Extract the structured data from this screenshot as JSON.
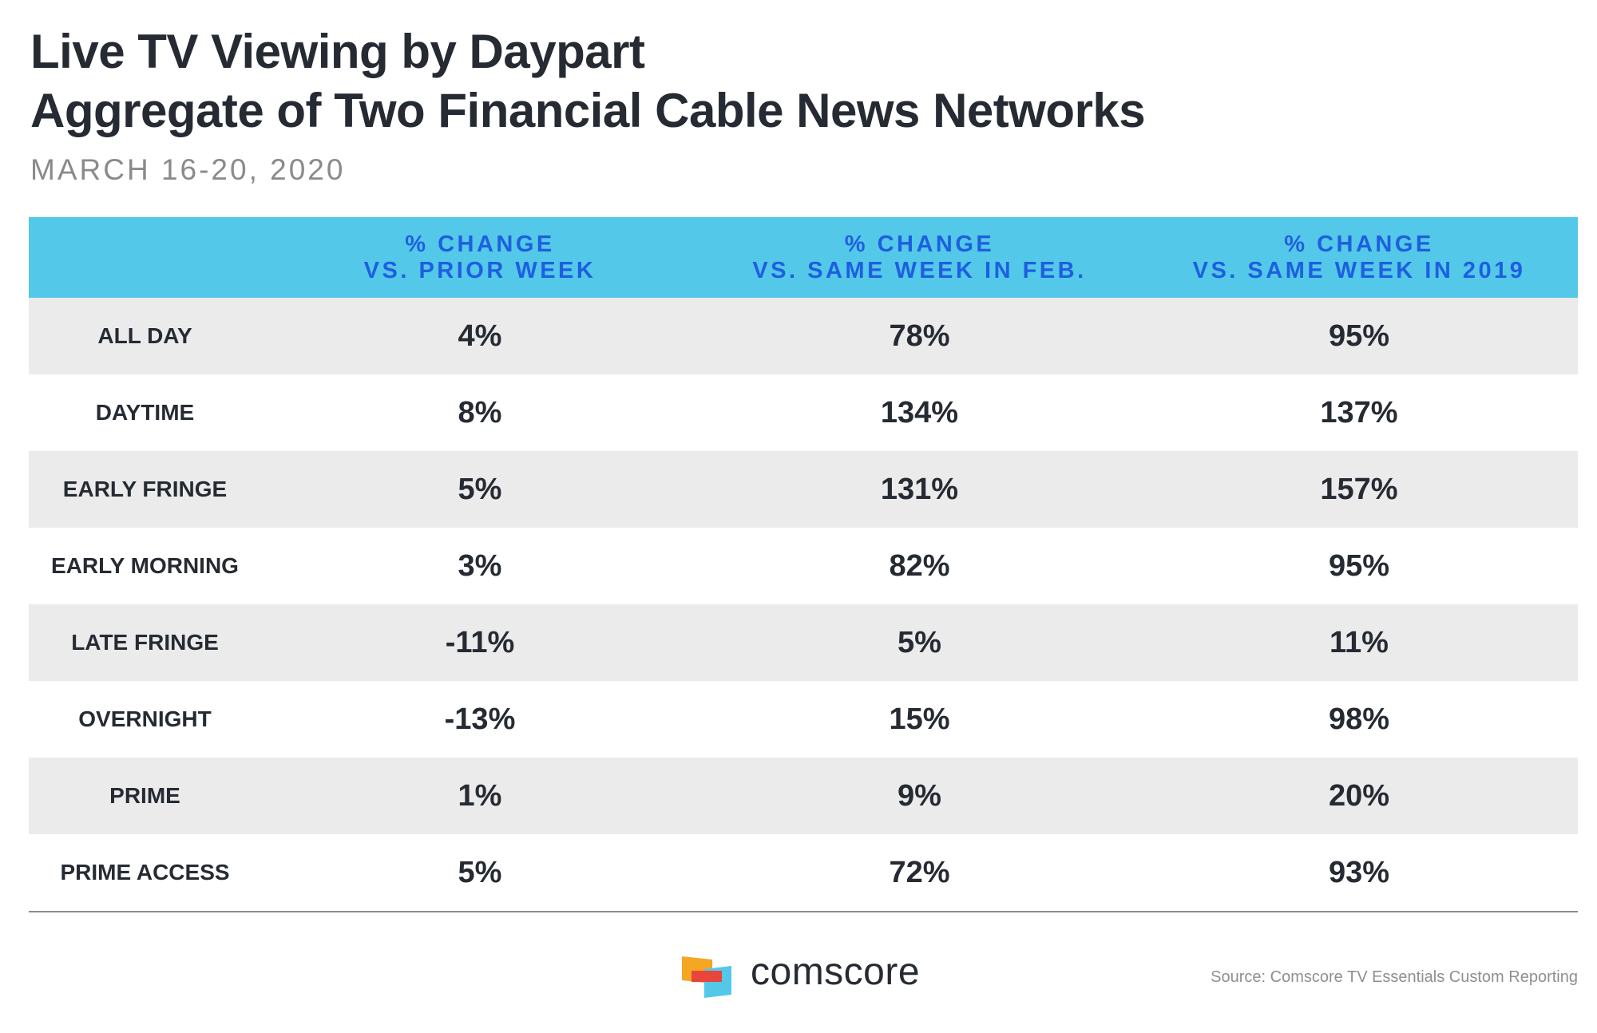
{
  "chart_data": {
    "type": "table",
    "title": "Live TV Viewing by Daypart",
    "title_line2": "Aggregate of Two Financial Cable News Networks",
    "subtitle": "MARCH 16-20, 2020",
    "columns": [
      {
        "line1": "% CHANGE",
        "line2": "VS. PRIOR WEEK"
      },
      {
        "line1": "% CHANGE",
        "line2": "VS. SAME WEEK IN FEB."
      },
      {
        "line1": "% CHANGE",
        "line2": "VS. SAME WEEK IN 2019"
      }
    ],
    "rows": [
      {
        "label": "ALL DAY",
        "values": [
          "4%",
          "78%",
          "95%"
        ]
      },
      {
        "label": "DAYTIME",
        "values": [
          "8%",
          "134%",
          "137%"
        ]
      },
      {
        "label": "EARLY FRINGE",
        "values": [
          "5%",
          "131%",
          "157%"
        ]
      },
      {
        "label": "EARLY MORNING",
        "values": [
          "3%",
          "82%",
          "95%"
        ]
      },
      {
        "label": "LATE FRINGE",
        "values": [
          "-11%",
          "5%",
          "11%"
        ]
      },
      {
        "label": "OVERNIGHT",
        "values": [
          "-13%",
          "15%",
          "98%"
        ]
      },
      {
        "label": "PRIME",
        "values": [
          "1%",
          "9%",
          "20%"
        ]
      },
      {
        "label": "PRIME ACCESS",
        "values": [
          "5%",
          "72%",
          "93%"
        ]
      }
    ]
  },
  "footer": {
    "brand": "comscore",
    "source": "Source: Comscore TV Essentials Custom Reporting"
  },
  "colors": {
    "header_bg": "#54c8e8",
    "header_text": "#1e5fe0",
    "band": "#ebebeb",
    "text": "#262b33",
    "logo_orange": "#f5a623",
    "logo_red": "#e8453c",
    "logo_blue": "#54c8e8"
  }
}
